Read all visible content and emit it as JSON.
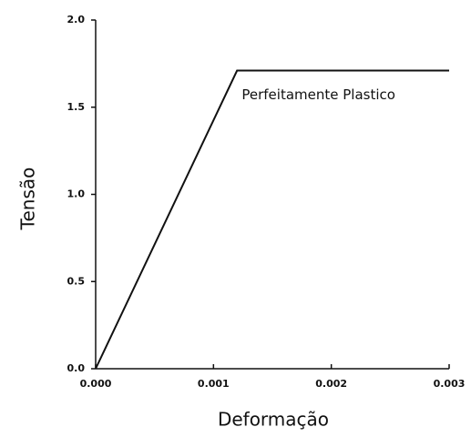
{
  "chart_data": {
    "type": "line",
    "xlabel": "Deformação",
    "ylabel": "Tensão",
    "x": [
      0,
      0.0012,
      0.003
    ],
    "series": [
      {
        "name": null,
        "color": "#111111",
        "values": [
          0,
          1.71,
          1.71
        ]
      }
    ],
    "annotations": [
      {
        "text": "Perfeitamente Plastico",
        "x": 0.00124,
        "y": 1.57
      }
    ],
    "xlim": [
      0,
      0.003
    ],
    "xticks": [
      {
        "value": 0,
        "label": "0.000"
      },
      {
        "value": 0.001,
        "label": "0.001"
      },
      {
        "value": 0.002,
        "label": "0.002"
      },
      {
        "value": 0.003,
        "label": "0.003"
      }
    ],
    "ylim": [
      0,
      2
    ],
    "yticks": [
      {
        "value": 0,
        "label": "0.0"
      },
      0.5,
      {
        "value": 1,
        "label": "1.0"
      },
      1.5,
      {
        "value": 2,
        "label": "2.0"
      }
    ],
    "grid": false
  }
}
